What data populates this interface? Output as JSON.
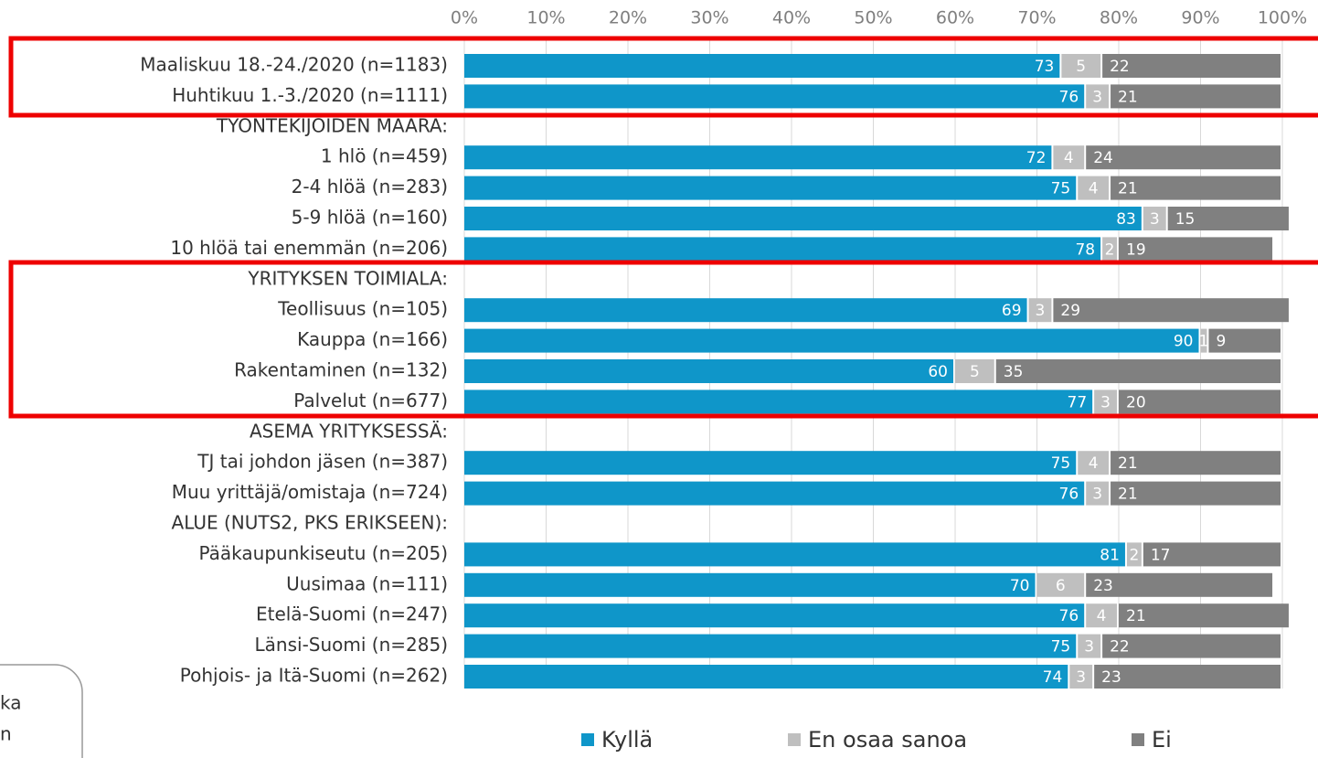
{
  "chart_data": {
    "type": "stacked_barh",
    "categories": [
      "Maaliskuu 18.-24./2020 (n=1183)",
      "Huhtikuu 1.-3./2020 (n=1111)",
      "TYÖNTEKIJÖIDEN MÄÄRÄ:",
      "1 hlö (n=459)",
      "2-4 hlöä (n=283)",
      "5-9 hlöä (n=160)",
      "10 hlöä tai enemmän (n=206)",
      "YRITYKSEN TOIMIALA:",
      "Teollisuus (n=105)",
      "Kauppa (n=166)",
      "Rakentaminen (n=132)",
      "Palvelut (n=677)",
      "ASEMA YRITYKSESSÄ:",
      "TJ tai johdon jäsen (n=387)",
      "Muu yrittäjä/omistaja (n=724)",
      "ALUE (NUTS2, PKS ERIKSEEN):",
      "Pääkaupunkiseutu (n=205)",
      "Uusimaa (n=111)",
      "Etelä-Suomi (n=247)",
      "Länsi-Suomi (n=285)",
      "Pohjois- ja Itä-Suomi (n=262)"
    ],
    "series": [
      {
        "name": "Kyllä",
        "color": "#0f96c9",
        "values": [
          73,
          76,
          null,
          72,
          75,
          83,
          78,
          null,
          69,
          90,
          60,
          77,
          null,
          75,
          76,
          null,
          81,
          70,
          76,
          75,
          74
        ]
      },
      {
        "name": "En osaa sanoa",
        "color": "#bfbfbf",
        "values": [
          5,
          3,
          null,
          4,
          4,
          3,
          2,
          null,
          3,
          1,
          5,
          3,
          null,
          4,
          3,
          null,
          2,
          6,
          4,
          3,
          3
        ]
      },
      {
        "name": "Ei",
        "color": "#808080",
        "values": [
          22,
          21,
          null,
          24,
          21,
          15,
          19,
          null,
          29,
          9,
          35,
          20,
          null,
          21,
          21,
          null,
          17,
          23,
          21,
          22,
          23
        ]
      }
    ],
    "xlim": [
      0,
      100
    ],
    "xticks": [
      {
        "value": 0,
        "label": "0%"
      },
      {
        "value": 10,
        "label": "10%"
      },
      {
        "value": 20,
        "label": "20%"
      },
      {
        "value": 30,
        "label": "30%"
      },
      {
        "value": 40,
        "label": "40%"
      },
      {
        "value": 50,
        "label": "50%"
      },
      {
        "value": 60,
        "label": "60%"
      },
      {
        "value": 70,
        "label": "70%"
      },
      {
        "value": 80,
        "label": "80%"
      },
      {
        "value": 90,
        "label": "90%"
      },
      {
        "value": 100,
        "label": "100%"
      }
    ],
    "grid": true,
    "legend": "bottom",
    "annotation_lines": [
      "ka",
      "n"
    ]
  }
}
